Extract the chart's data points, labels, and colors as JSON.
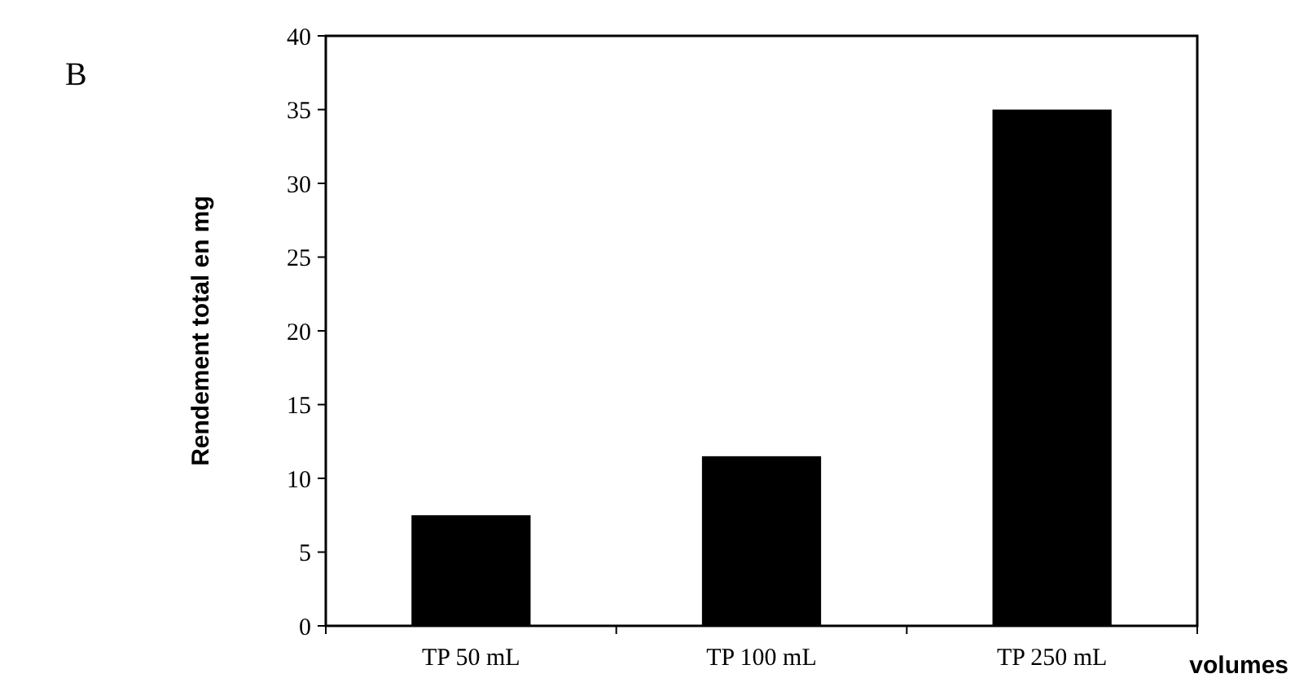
{
  "chart_data": {
    "type": "bar",
    "xlabel": "volumes",
    "ylabel": "Rendement total en mg",
    "annotations": [
      "B"
    ],
    "categories": [
      "TP 50 mL",
      "TP 100 mL",
      "TP 250 mL"
    ],
    "values": [
      7.5,
      11.5,
      35
    ],
    "color": "#000000",
    "ylim": [
      0,
      40
    ],
    "yticks": [
      0,
      5,
      10,
      15,
      20,
      25,
      30,
      35,
      40
    ],
    "grid": false
  }
}
